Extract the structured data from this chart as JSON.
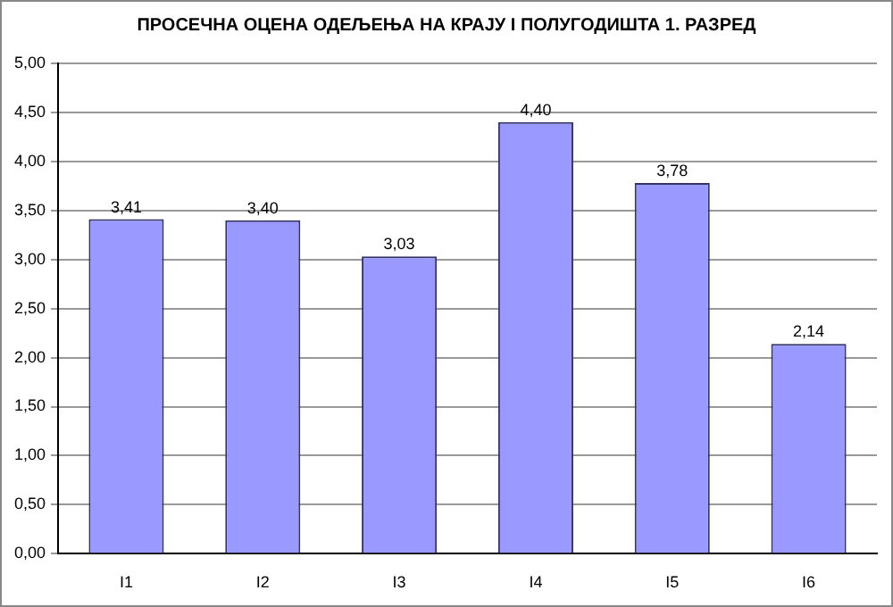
{
  "chart_data": {
    "type": "bar",
    "title": "ПРОСЕЧНА ОЦЕНА ОДЕЉЕЊА НА КРАЈУ  I ПОЛУГОДИШТА 1. РАЗРЕД",
    "categories": [
      "I1",
      "I2",
      "I3",
      "I4",
      "I5",
      "I6"
    ],
    "values": [
      3.41,
      3.4,
      3.03,
      4.4,
      3.78,
      2.14
    ],
    "value_labels": [
      "3,41",
      "3,40",
      "3,03",
      "4,40",
      "3,78",
      "2,14"
    ],
    "color": "#9999ff",
    "ylim": [
      0,
      5
    ],
    "yticks": [
      {
        "value": 0,
        "label": "0,00"
      },
      {
        "value": 0.5,
        "label": "0,50"
      },
      {
        "value": 1,
        "label": "1,00"
      },
      {
        "value": 1.5,
        "label": "1,50"
      },
      {
        "value": 2,
        "label": "2,00"
      },
      {
        "value": 2.5,
        "label": "2,50"
      },
      {
        "value": 3,
        "label": "3,00"
      },
      {
        "value": 3.5,
        "label": "3,50"
      },
      {
        "value": 4,
        "label": "4,00"
      },
      {
        "value": 4.5,
        "label": "4,50"
      },
      {
        "value": 5,
        "label": "5,00"
      }
    ],
    "grid": "y"
  }
}
